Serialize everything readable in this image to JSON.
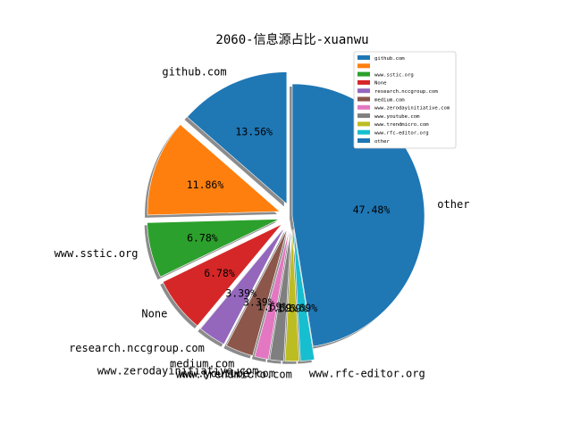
{
  "chart_data": {
    "type": "pie",
    "title": "2060-信息源占比-xuanwu",
    "slices": [
      {
        "label": "github.com",
        "value": 13.56,
        "pct_text": "13.56%",
        "color": "#1f77b4",
        "explode": 0.1
      },
      {
        "label": "",
        "value": 11.86,
        "pct_text": "11.86%",
        "color": "#ff7f0e",
        "explode": 0.1
      },
      {
        "label": "www.sstic.org",
        "value": 6.78,
        "pct_text": "6.78%",
        "color": "#2ca02c",
        "explode": 0.1
      },
      {
        "label": "None",
        "value": 6.78,
        "pct_text": "6.78%",
        "color": "#d62728",
        "explode": 0.1
      },
      {
        "label": "research.nccgroup.com",
        "value": 3.39,
        "pct_text": "3.39%",
        "color": "#9467bd",
        "explode": 0.1
      },
      {
        "label": "medium.com",
        "value": 3.39,
        "pct_text": "3.39%",
        "color": "#8c564b",
        "explode": 0.1
      },
      {
        "label": "www.zerodayinitiative.com",
        "value": 1.69,
        "pct_text": "1.69%",
        "color": "#e377c2",
        "explode": 0.1
      },
      {
        "label": "www.youtube.com",
        "value": 1.69,
        "pct_text": "1.69%",
        "color": "#7f7f7f",
        "explode": 0.1
      },
      {
        "label": "www.trendmicro.com",
        "value": 1.69,
        "pct_text": "1.69%",
        "color": "#bcbd22",
        "explode": 0.1
      },
      {
        "label": "www.rfc-editor.org",
        "value": 1.69,
        "pct_text": "1.69%",
        "color": "#17becf",
        "explode": 0.1
      },
      {
        "label": "other",
        "value": 47.48,
        "pct_text": "47.48%",
        "color": "#1f77b4",
        "explode": 0
      }
    ],
    "start_angle_deg": 90,
    "direction": "counterclockwise",
    "shadow": true,
    "legend": {
      "location": "top-right",
      "entries": [
        "github.com",
        "",
        "www.sstic.org",
        "None",
        "research.nccgroup.com",
        "medium.com",
        "www.zerodayinitiative.com",
        "www.youtube.com",
        "www.trendmicro.com",
        "www.rfc-editor.org",
        "other"
      ]
    }
  }
}
